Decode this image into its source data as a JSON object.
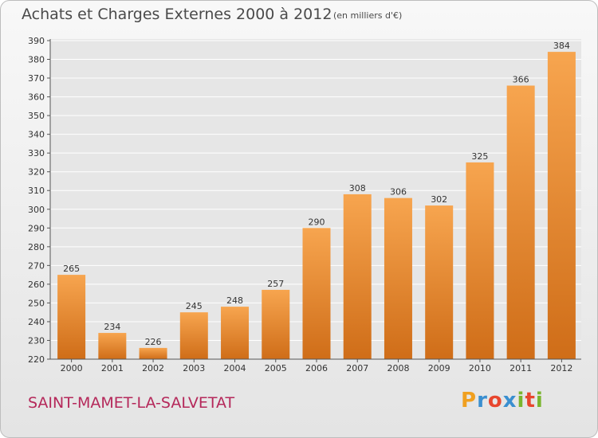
{
  "chart_data": {
    "type": "bar",
    "title": "Achats et Charges Externes 2000 à 2012",
    "subtitle": "(en milliers d'€)",
    "categories": [
      "2000",
      "2001",
      "2002",
      "2003",
      "2004",
      "2005",
      "2006",
      "2007",
      "2008",
      "2009",
      "2010",
      "2011",
      "2012"
    ],
    "values": [
      265,
      234,
      226,
      245,
      248,
      257,
      290,
      308,
      306,
      302,
      325,
      366,
      384
    ],
    "ylim": [
      220,
      390
    ],
    "yticks": [
      220,
      230,
      240,
      250,
      260,
      270,
      280,
      290,
      300,
      310,
      320,
      330,
      340,
      350,
      360,
      370,
      380,
      390
    ],
    "grid": true,
    "colors": {
      "bar_light": "#f7a54f",
      "bar_dark": "#cf6d18",
      "grid": "#ffffff"
    }
  },
  "commune": "SAINT-MAMET-LA-SALVETAT",
  "logo": {
    "letters": [
      "P",
      "r",
      "o",
      "x",
      "i",
      "t",
      "i"
    ],
    "colors": [
      "#f0a020",
      "#3a8fd0",
      "#e8462e",
      "#3a8fd0",
      "#7ab52e",
      "#e8462e",
      "#7ab52e"
    ]
  }
}
